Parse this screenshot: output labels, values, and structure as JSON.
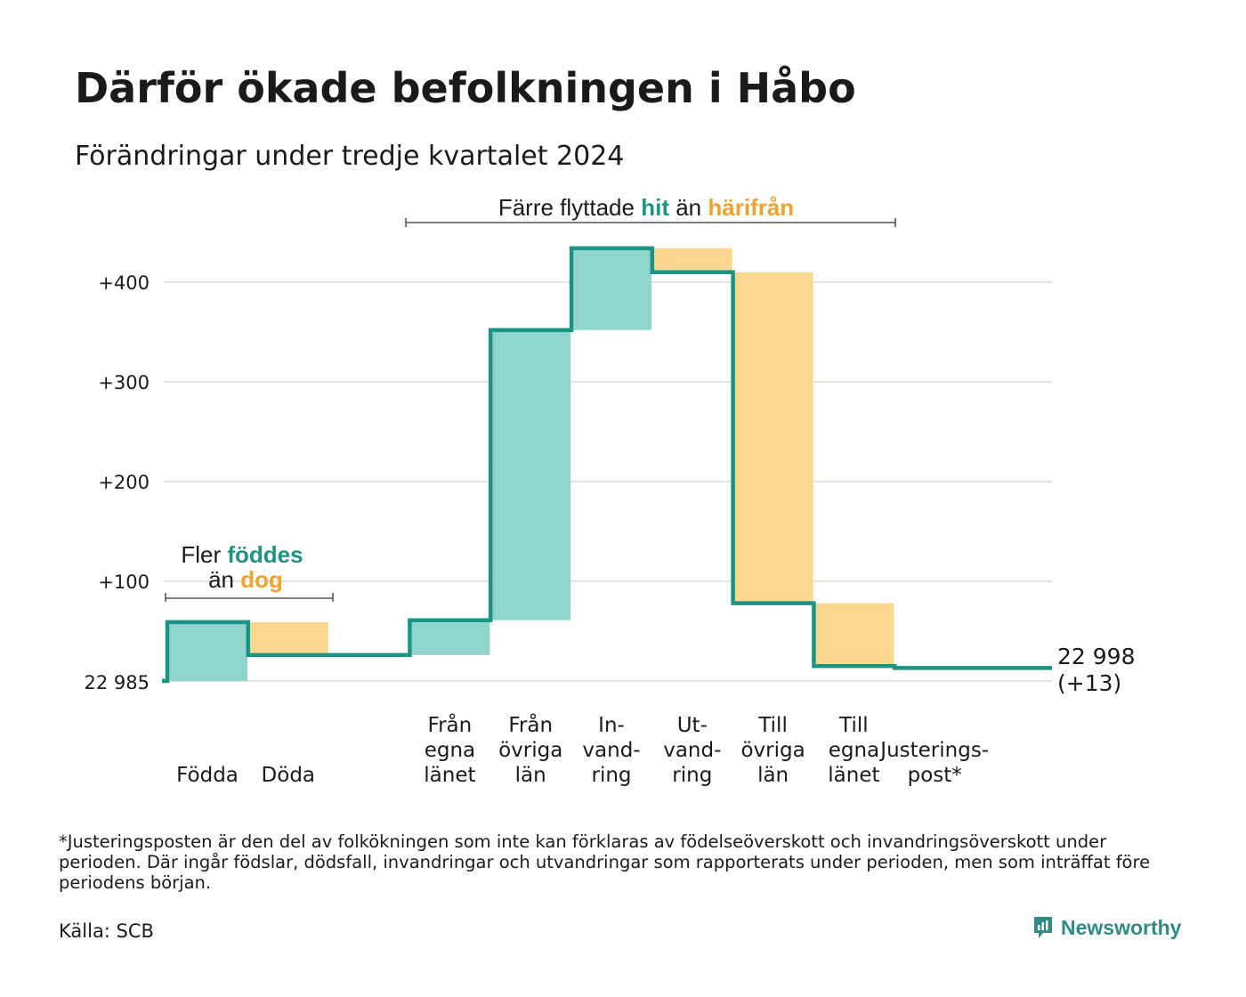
{
  "title": "Därför ökade befolkningen i Håbo",
  "subtitle": "Förändringar under tredje kvartalet 2024",
  "footnote": "*Justeringsposten är den del av folkökningen som inte kan förklaras av födelseöverskott och invandringsöverskott under perioden. Där ingår födslar, dödsfall, invandringar och utvandringar som rapporterats under perioden, men som inträffat före periodens början.",
  "source": "Källa: SCB",
  "brand": {
    "name": "Newsworthy",
    "icon": "newsworthy-logo-icon"
  },
  "colors": {
    "gain": "#8fd5cb",
    "loss": "#fad68e",
    "line": "#1a9584",
    "accent_gain": "#1a9584",
    "accent_loss": "#f1a22d",
    "grid": "#e2e2e2"
  },
  "annotations": {
    "births": {
      "line1_pre": "Fler ",
      "line1_em": "föddes",
      "line2_pre": "än ",
      "line2_em": "dog"
    },
    "moves": {
      "pre": "Färre flyttade ",
      "em1": "hit",
      "mid": " än ",
      "em2": "härifrån"
    }
  },
  "chart_data": {
    "type": "waterfall",
    "title": "Därför ökade befolkningen i Håbo",
    "subtitle": "Förändringar under tredje kvartalet 2024",
    "baseline": 22985,
    "baseline_label": "22 985",
    "end_label_value": "22 998",
    "end_label_change": "(+13)",
    "y_ticks": [
      {
        "value": 100,
        "label": "+100"
      },
      {
        "value": 200,
        "label": "+200"
      },
      {
        "value": 300,
        "label": "+300"
      },
      {
        "value": 400,
        "label": "+400"
      }
    ],
    "ylim": [
      0,
      430
    ],
    "grid": true,
    "steps": [
      {
        "label_lines": [
          "Födda"
        ],
        "delta": 59,
        "type": "gain"
      },
      {
        "label_lines": [
          "Döda"
        ],
        "delta": -33,
        "type": "loss"
      },
      {
        "label_lines": [],
        "delta": 0,
        "type": "gap"
      },
      {
        "label_lines": [
          "Från",
          "egna",
          "länet"
        ],
        "delta": 35,
        "type": "gain"
      },
      {
        "label_lines": [
          "Från",
          "övriga",
          "län"
        ],
        "delta": 291,
        "type": "gain"
      },
      {
        "label_lines": [
          "In-",
          "vand-",
          "ring"
        ],
        "delta": 82,
        "type": "gain"
      },
      {
        "label_lines": [
          "Ut-",
          "vand-",
          "ring"
        ],
        "delta": -24,
        "type": "loss"
      },
      {
        "label_lines": [
          "Till",
          "övriga",
          "län"
        ],
        "delta": -332,
        "type": "loss"
      },
      {
        "label_lines": [
          "Till",
          "egna",
          "länet"
        ],
        "delta": -63,
        "type": "loss"
      },
      {
        "label_lines": [
          "Justerings-",
          "post*"
        ],
        "delta": -2,
        "type": "adjustment"
      }
    ]
  }
}
